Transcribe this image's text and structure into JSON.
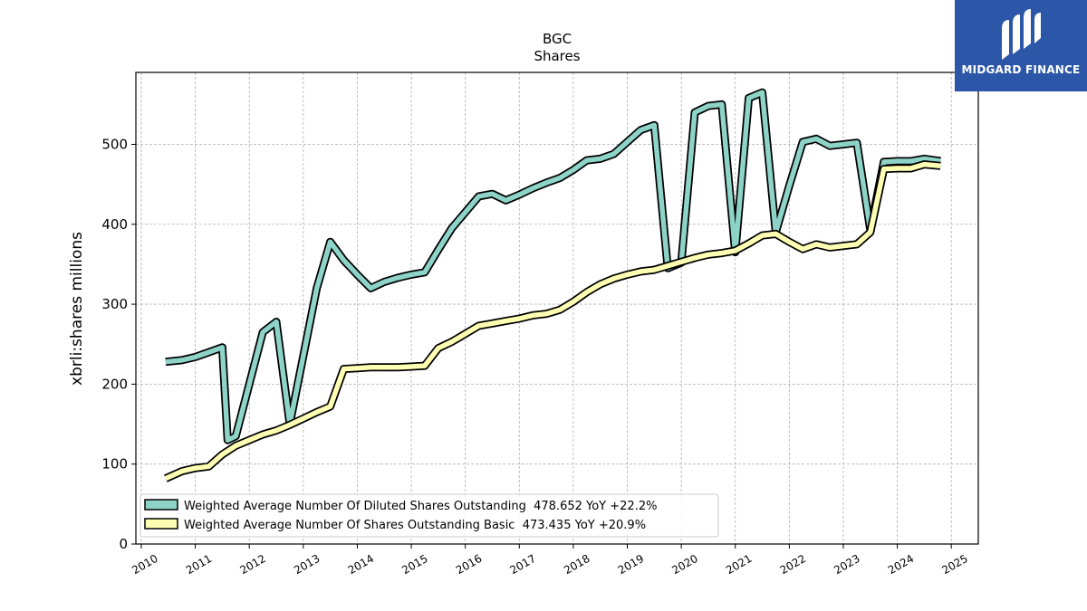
{
  "chart_data": {
    "type": "line",
    "title": "BGC",
    "subtitle": "Shares",
    "ylabel": "xbrli:shares millions",
    "xlabel": "",
    "xlim": [
      2009.9,
      2025.5
    ],
    "ylim": [
      0,
      590
    ],
    "xticks": [
      "2010",
      "2011",
      "2012",
      "2013",
      "2014",
      "2015",
      "2016",
      "2017",
      "2018",
      "2019",
      "2020",
      "2021",
      "2022",
      "2023",
      "2024",
      "2025"
    ],
    "yticks": [
      "0",
      "100",
      "200",
      "300",
      "400",
      "500"
    ],
    "grid": true,
    "legend_position": "lower-left",
    "series": [
      {
        "name": "Weighted Average Number Of Diluted Shares Outstanding  478.652 YoY +22.2%",
        "color": "#8dd3c7",
        "x": [
          2010.45,
          2010.75,
          2011.0,
          2011.25,
          2011.5,
          2011.6,
          2011.75,
          2012.0,
          2012.25,
          2012.5,
          2012.75,
          2013.0,
          2013.25,
          2013.5,
          2013.75,
          2014.0,
          2014.25,
          2014.5,
          2014.75,
          2015.0,
          2015.25,
          2015.5,
          2015.75,
          2016.0,
          2016.25,
          2016.5,
          2016.75,
          2017.0,
          2017.25,
          2017.5,
          2017.75,
          2018.0,
          2018.25,
          2018.5,
          2018.75,
          2019.0,
          2019.25,
          2019.5,
          2019.75,
          2020.0,
          2020.25,
          2020.5,
          2020.75,
          2021.0,
          2021.25,
          2021.5,
          2021.75,
          2022.0,
          2022.25,
          2022.5,
          2022.75,
          2023.0,
          2023.25,
          2023.5,
          2023.75,
          2024.0,
          2024.25,
          2024.5,
          2024.8
        ],
        "values": [
          228,
          230,
          234,
          240,
          246,
          130,
          135,
          200,
          265,
          278,
          150,
          235,
          320,
          378,
          355,
          337,
          320,
          328,
          333,
          337,
          340,
          368,
          395,
          415,
          435,
          438,
          430,
          437,
          445,
          452,
          458,
          468,
          480,
          482,
          488,
          503,
          518,
          524,
          345,
          352,
          540,
          548,
          550,
          365,
          558,
          565,
          390,
          448,
          503,
          507,
          498,
          500,
          502,
          393,
          478,
          479,
          479,
          482,
          479
        ]
      },
      {
        "name": "Weighted Average Number Of Shares Outstanding Basic  473.435 YoY +20.9%",
        "color": "#ffffb3",
        "x": [
          2010.45,
          2010.75,
          2011.0,
          2011.25,
          2011.5,
          2011.75,
          2012.0,
          2012.25,
          2012.5,
          2012.75,
          2013.0,
          2013.25,
          2013.5,
          2013.75,
          2014.0,
          2014.25,
          2014.5,
          2014.75,
          2015.0,
          2015.25,
          2015.5,
          2015.75,
          2016.0,
          2016.25,
          2016.5,
          2016.75,
          2017.0,
          2017.25,
          2017.5,
          2017.75,
          2018.0,
          2018.25,
          2018.5,
          2018.75,
          2019.0,
          2019.25,
          2019.5,
          2019.75,
          2020.0,
          2020.25,
          2020.5,
          2020.75,
          2021.0,
          2021.25,
          2021.5,
          2021.75,
          2022.0,
          2022.25,
          2022.5,
          2022.75,
          2023.0,
          2023.25,
          2023.5,
          2023.75,
          2024.0,
          2024.25,
          2024.5,
          2024.8
        ],
        "values": [
          82,
          91,
          95,
          97,
          112,
          123,
          130,
          137,
          142,
          149,
          157,
          165,
          172,
          219,
          220,
          221,
          221,
          221,
          222,
          223,
          245,
          253,
          263,
          273,
          276,
          279,
          282,
          286,
          288,
          293,
          303,
          315,
          325,
          332,
          337,
          341,
          343,
          348,
          353,
          358,
          362,
          364,
          367,
          376,
          386,
          388,
          378,
          369,
          375,
          371,
          373,
          375,
          390,
          469,
          470,
          470,
          475,
          473
        ]
      }
    ]
  },
  "logo": {
    "text": "MIDGARD FINANCE",
    "icon": "midgard-logo-icon",
    "background": "#2c57a8"
  }
}
